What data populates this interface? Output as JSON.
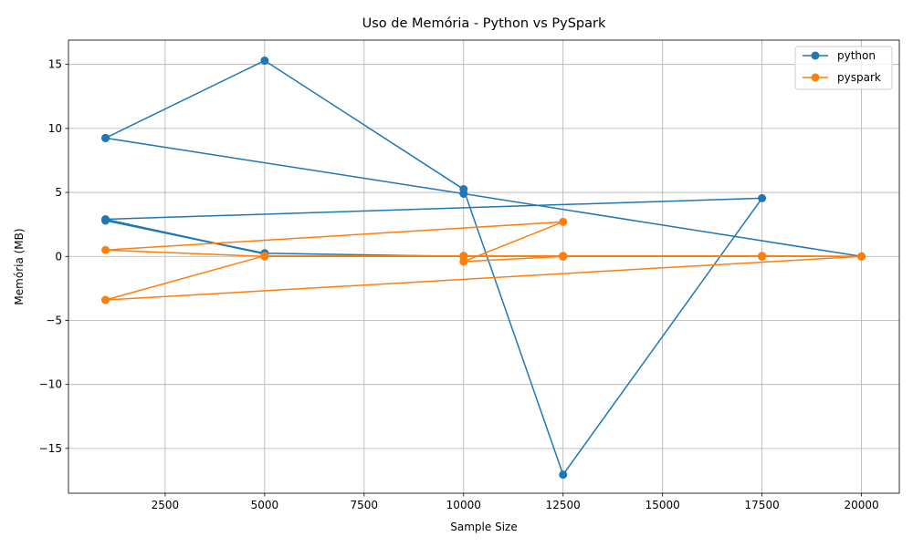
{
  "chart_data": {
    "type": "line",
    "title": "Uso de Memória - Python vs PySpark",
    "xlabel": "Sample Size",
    "ylabel": "Memória (MB)",
    "xlim": [
      70,
      20950
    ],
    "ylim": [
      -18.5,
      16.9
    ],
    "xticks": [
      2500,
      5000,
      7500,
      10000,
      12500,
      15000,
      17500,
      20000
    ],
    "xtick_labels": [
      "2500",
      "5000",
      "7500",
      "10000",
      "12500",
      "15000",
      "17500",
      "20000"
    ],
    "yticks": [
      -15,
      -10,
      -5,
      0,
      5,
      10,
      15
    ],
    "ytick_labels": [
      "−15",
      "−10",
      "−5",
      "0",
      "5",
      "10",
      "15"
    ],
    "grid": true,
    "legend_position": "top-right",
    "series": [
      {
        "name": "python",
        "color": "#1f77b4",
        "points": [
          [
            1000,
            9.25
          ],
          [
            5000,
            15.3
          ],
          [
            10000,
            5.25
          ],
          [
            12500,
            -17.05
          ],
          [
            17500,
            4.55
          ],
          [
            1000,
            2.9
          ],
          [
            5000,
            0.2
          ],
          [
            1000,
            2.8
          ],
          [
            5000,
            0.25
          ],
          [
            10000,
            0.0
          ],
          [
            12500,
            0.0
          ],
          [
            17500,
            0.0
          ],
          [
            20000,
            0.0
          ],
          [
            10000,
            4.9
          ],
          [
            1000,
            9.25
          ]
        ]
      },
      {
        "name": "pyspark",
        "color": "#ff7f0e",
        "points": [
          [
            1000,
            -3.4
          ],
          [
            5000,
            0.05
          ],
          [
            10000,
            0.05
          ],
          [
            12500,
            0.05
          ],
          [
            17500,
            0.05
          ],
          [
            20000,
            0.0
          ],
          [
            1000,
            -3.4
          ],
          [
            20000,
            0.0
          ],
          [
            12500,
            0.0
          ],
          [
            10000,
            -0.4
          ],
          [
            12500,
            2.7
          ],
          [
            1000,
            0.5
          ],
          [
            5000,
            0.0
          ],
          [
            10000,
            0.0
          ],
          [
            12500,
            0.0
          ],
          [
            17500,
            0.0
          ],
          [
            20000,
            0.0
          ]
        ]
      }
    ]
  }
}
